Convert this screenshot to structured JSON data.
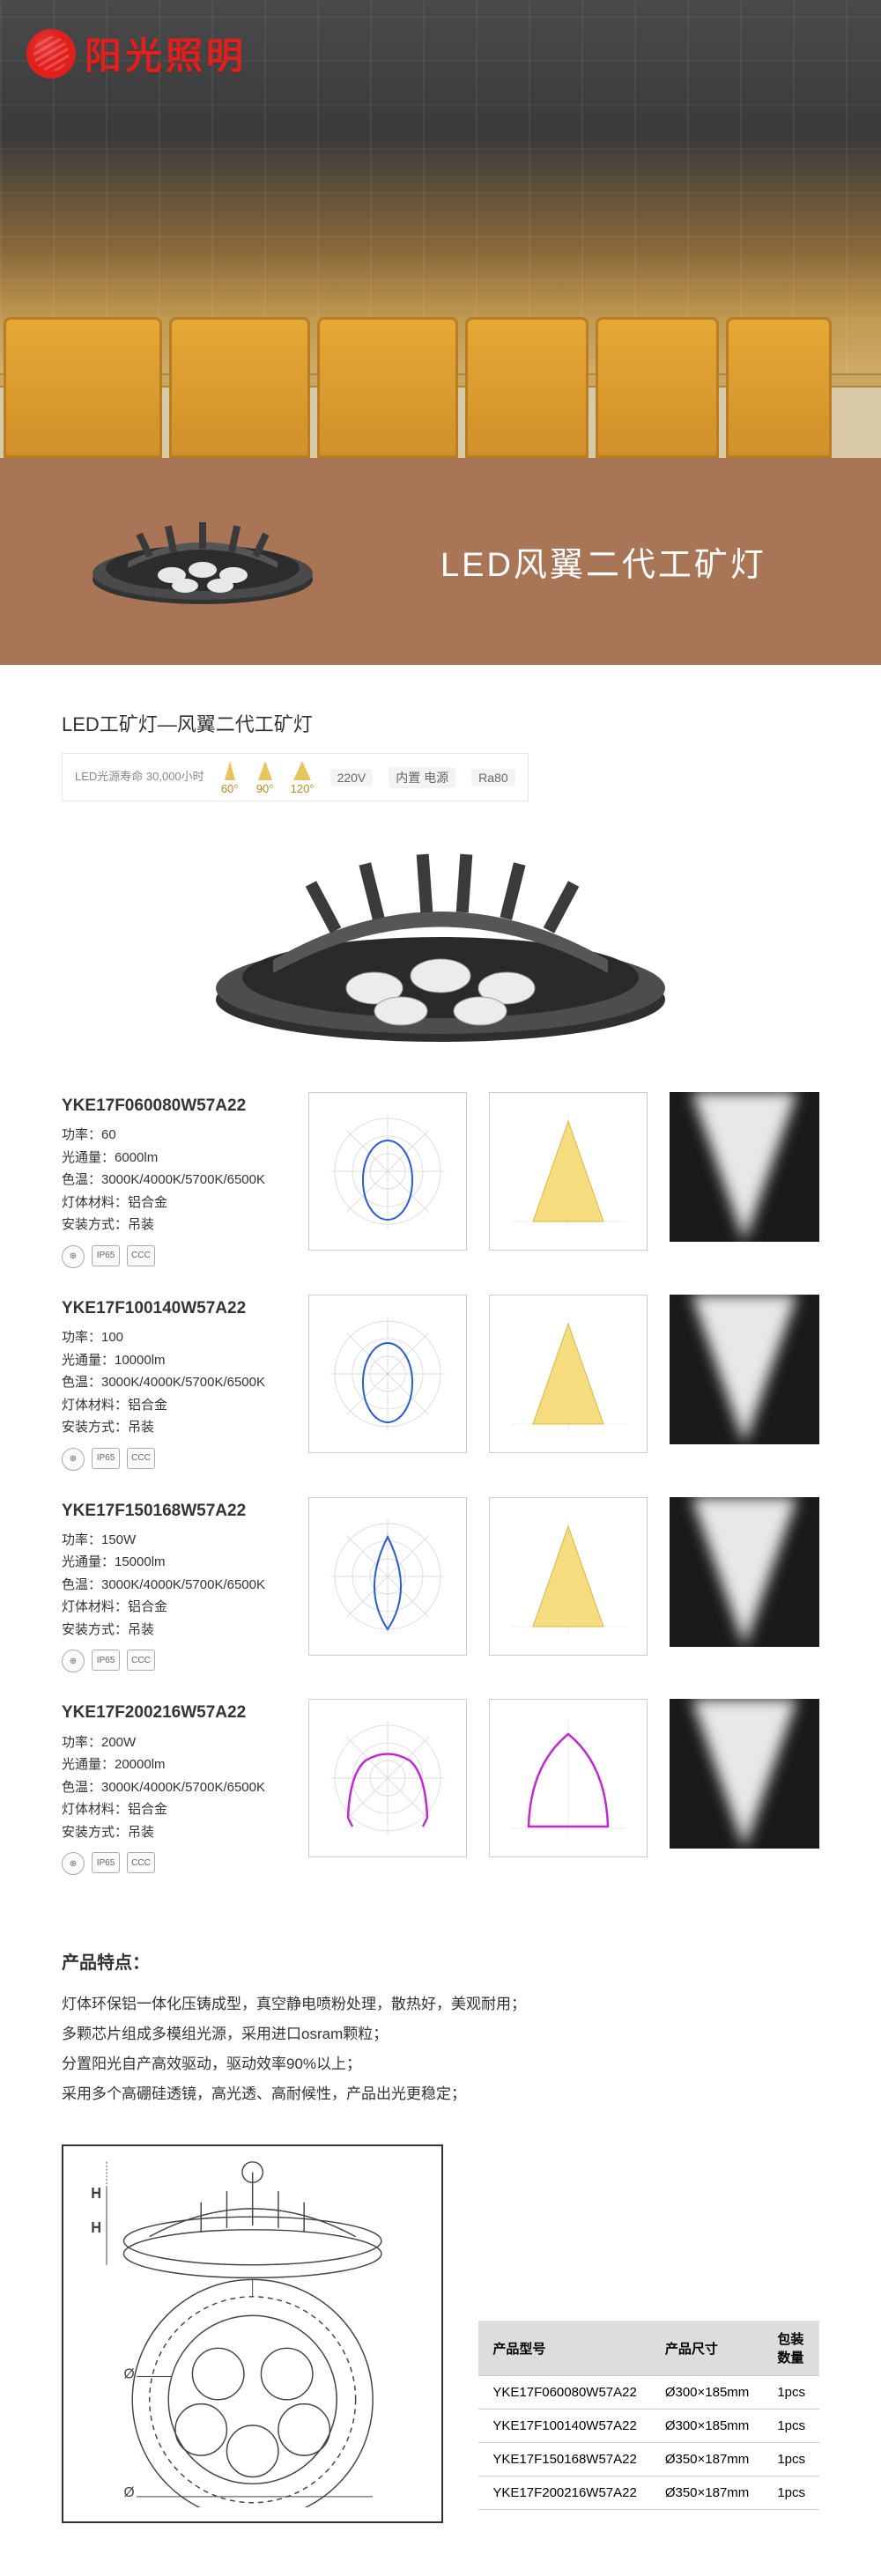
{
  "logo_text": "阳光照明",
  "band_title": "LED风翼二代工矿灯",
  "section_title": "LED工矿灯—风翼二代工矿灯",
  "spec_bar": {
    "life": "LED光源寿命\n30,000小时",
    "angles": [
      "60°",
      "90°",
      "120°"
    ],
    "voltage": "220V",
    "psu": "内置\n电源",
    "cri": "Ra80"
  },
  "spec_labels": {
    "power": "功率：",
    "flux": "光通量：",
    "cct": "色温：",
    "material": "灯体材料：",
    "mount": "安装方式："
  },
  "models": [
    {
      "model": "YKE17F060080W57A22",
      "power": "60",
      "flux": "6000lm",
      "cct": "3000K/4000K/5700K/6500K",
      "material": "铝合金",
      "mount": "吊装",
      "shape": "drop"
    },
    {
      "model": "YKE17F100140W57A22",
      "power": "100",
      "flux": "10000lm",
      "cct": "3000K/4000K/5700K/6500K",
      "material": "铝合金",
      "mount": "吊装",
      "shape": "drop"
    },
    {
      "model": "YKE17F150168W57A22",
      "power": "150W",
      "flux": "15000lm",
      "cct": "3000K/4000K/5700K/6500K",
      "material": "铝合金",
      "mount": "吊装",
      "shape": "teardrop"
    },
    {
      "model": "YKE17F200216W57A22",
      "power": "200W",
      "flux": "20000lm",
      "cct": "3000K/4000K/5700K/6500K",
      "material": "铝合金",
      "mount": "吊装",
      "shape": "curve"
    }
  ],
  "cert_labels": [
    "⊕",
    "IP65",
    "CCC"
  ],
  "features_title": "产品特点：",
  "features": [
    "灯体环保铝一体化压铸成型，真空静电喷粉处理，散热好，美观耐用；",
    "多颗芯片组成多模组光源，采用进口osram颗粒；",
    "分置阳光自产高效驱动，驱动效率90%以上；",
    "采用多个高硼硅透镜，高光透、高耐候性，产品出光更稳定；"
  ],
  "pkg_headers": [
    "产品型号",
    "产品尺寸",
    "包装数量"
  ],
  "pkg_rows": [
    [
      "YKE17F060080W57A22",
      "Ø300×185mm",
      "1pcs"
    ],
    [
      "YKE17F100140W57A22",
      "Ø300×185mm",
      "1pcs"
    ],
    [
      "YKE17F150168W57A22",
      "Ø350×187mm",
      "1pcs"
    ],
    [
      "YKE17F200216W57A22",
      "Ø350×187mm",
      "1pcs"
    ]
  ],
  "dim_labels": [
    "H",
    "H",
    "Ø",
    "Ø"
  ],
  "colors": {
    "band": "#a97557",
    "accent": "#e1201e",
    "cone_fill": "#f5dd7f",
    "polar_stroke": "#2b5bcf",
    "curve_stroke": "#c02bcf"
  }
}
